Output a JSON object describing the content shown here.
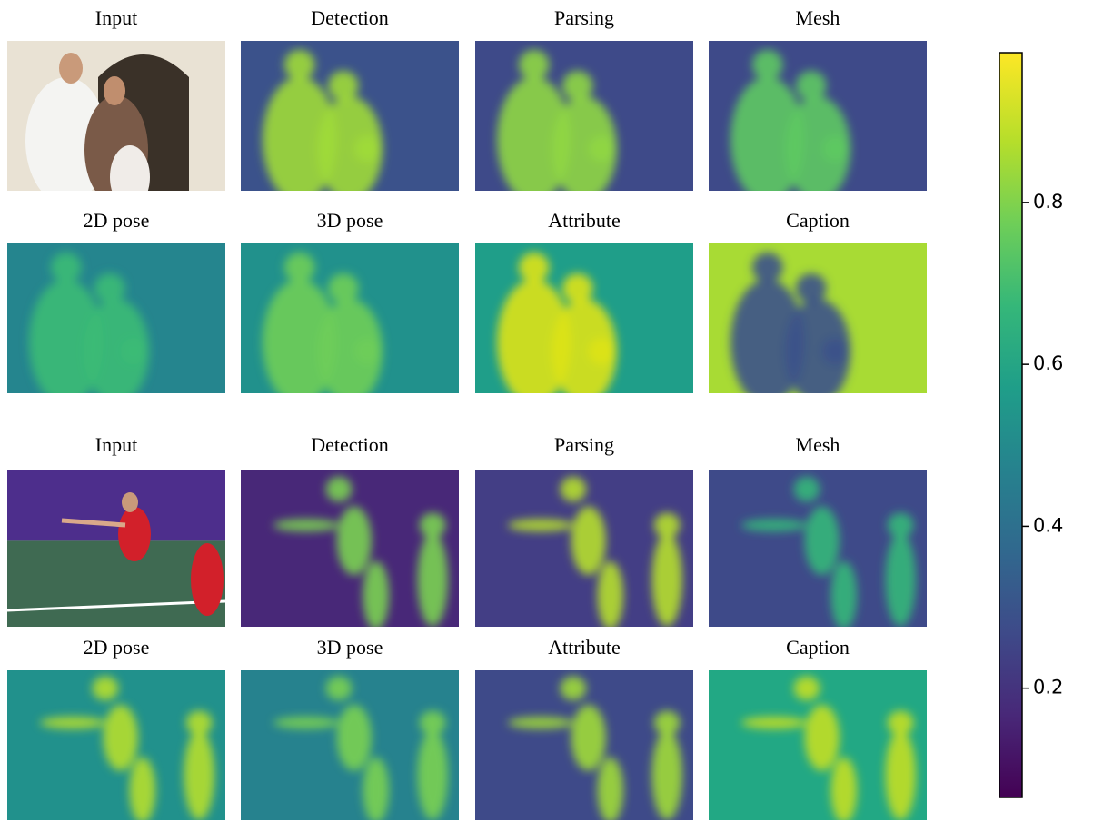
{
  "rows": [
    [
      "Input",
      "Detection",
      "Parsing",
      "Mesh"
    ],
    [
      "2D pose",
      "3D pose",
      "Attribute",
      "Caption"
    ],
    [
      "Input",
      "Detection",
      "Parsing",
      "Mesh"
    ],
    [
      "2D pose",
      "3D pose",
      "Attribute",
      "Caption"
    ]
  ],
  "colorbar": {
    "ylim": [
      0.065,
      0.985
    ],
    "yticks": [
      0.2,
      0.4,
      0.6,
      0.8
    ]
  }
}
